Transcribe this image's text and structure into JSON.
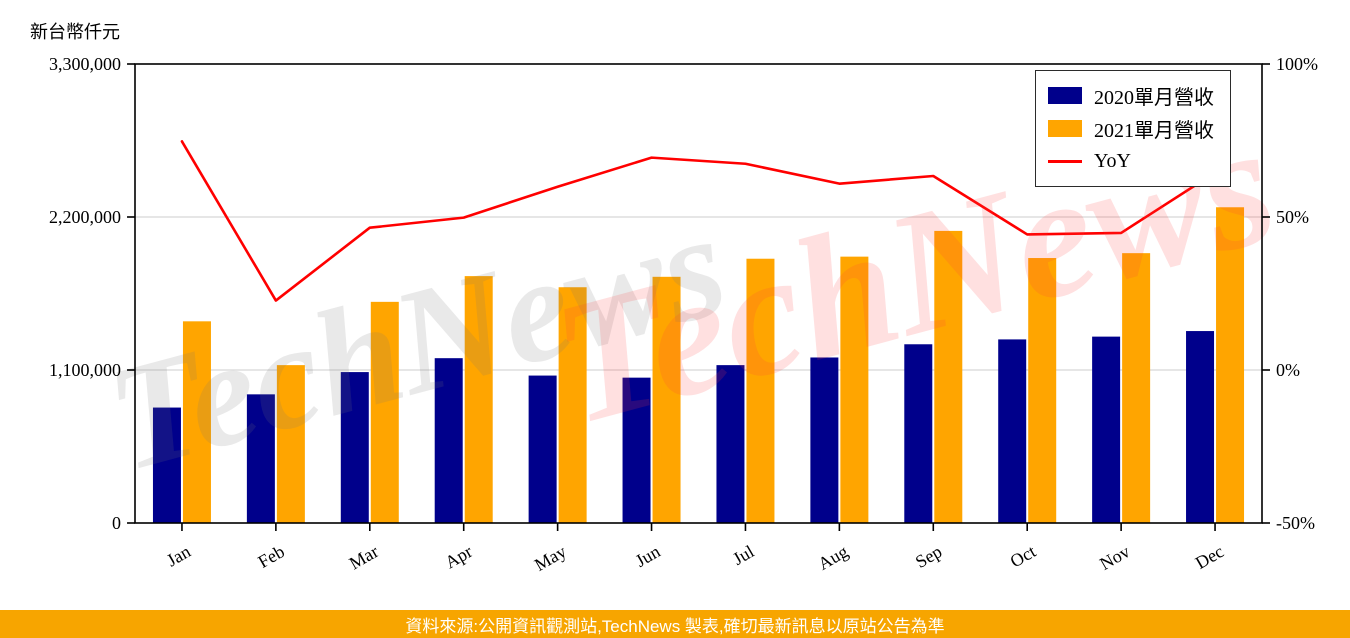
{
  "watermark": {
    "text": "TechNews"
  },
  "footer": {
    "text": "資料來源:公開資訊觀測站,TechNews 製表,確切最新訊息以原站公告為準",
    "background": "#F7A500"
  },
  "colors": {
    "bar_2020": "#00008B",
    "bar_2021": "#FFA500",
    "yoy_line": "#FF0000",
    "grid": "#cccccc",
    "axis": "#000000",
    "watermark_gray": "rgba(120,120,120,0.16)",
    "watermark_red": "rgba(255,60,60,0.16)"
  },
  "chart_data": {
    "type": "bar",
    "title": "",
    "categories": [
      "Jan",
      "Feb",
      "Mar",
      "Apr",
      "May",
      "Jun",
      "Jul",
      "Aug",
      "Sep",
      "Oct",
      "Nov",
      "Dec"
    ],
    "series": [
      {
        "name": "2020單月營收",
        "type": "bar",
        "axis": "left",
        "color": "#00008B",
        "values": [
          830000,
          925000,
          1085000,
          1185000,
          1060000,
          1045000,
          1135000,
          1190000,
          1285000,
          1320000,
          1340000,
          1380000
        ]
      },
      {
        "name": "2021單月營收",
        "type": "bar",
        "axis": "left",
        "color": "#FFA500",
        "values": [
          1450000,
          1135000,
          1590000,
          1775000,
          1695000,
          1770000,
          1900000,
          1915000,
          2100000,
          1905000,
          1940000,
          2270000
        ]
      },
      {
        "name": "YoY",
        "type": "line",
        "axis": "right",
        "color": "#FF0000",
        "unit": "%",
        "values": [
          74.7,
          22.7,
          46.5,
          49.8,
          59.9,
          69.4,
          67.4,
          60.9,
          63.4,
          44.3,
          44.8,
          64.5
        ]
      }
    ],
    "left_axis": {
      "label": "新台幣仟元",
      "range": [
        0,
        3300000
      ],
      "tick_values": [
        0,
        1100000,
        2200000,
        3300000
      ],
      "tick_labels": [
        "0",
        "1,100,000",
        "2,200,000",
        "3,300,000"
      ]
    },
    "right_axis": {
      "range": [
        -50,
        100
      ],
      "tick_values": [
        -50,
        0,
        50,
        100
      ],
      "tick_labels": [
        "-50%",
        "0%",
        "50%",
        "100%"
      ]
    },
    "legend_position": "top-right",
    "grid": "horizontal"
  }
}
